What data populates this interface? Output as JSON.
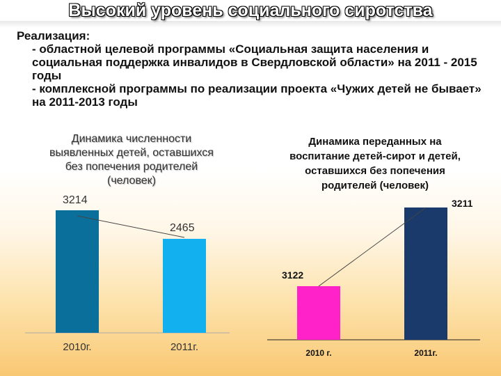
{
  "title": "Высокий уровень социального сиротства",
  "body": {
    "heading": "Реализация:",
    "items": [
      "- областной целевой программы «Социальная защита населения и социальная поддержка инвалидов в Свердловской области» на 2011 - 2015 годы",
      "- комплексной программы по реализации проекта «Чужих детей не бывает» на 2011-2013 годы"
    ]
  },
  "chart_data": [
    {
      "type": "bar",
      "title": "Динамика численности выявленных детей, оставшихся без попечения родителей (человек)",
      "categories": [
        "2010г.",
        "2011г."
      ],
      "values": [
        3214,
        2465
      ],
      "value_labels": [
        "3214",
        "2465"
      ],
      "colors": [
        "#0a6f9a",
        "#13b0f0"
      ],
      "trendline": true,
      "grid": false
    },
    {
      "type": "bar",
      "title": "Динамика переданных на воспитание детей-сирот и детей, оставшихся без попечения родителей (человек)",
      "categories": [
        "2010 г.",
        "2011г."
      ],
      "values": [
        3122,
        3211
      ],
      "value_labels": [
        "3122",
        "3211"
      ],
      "colors": [
        "#ff22c8",
        "#1a3a6b"
      ],
      "trendline": true,
      "grid": false
    }
  ]
}
